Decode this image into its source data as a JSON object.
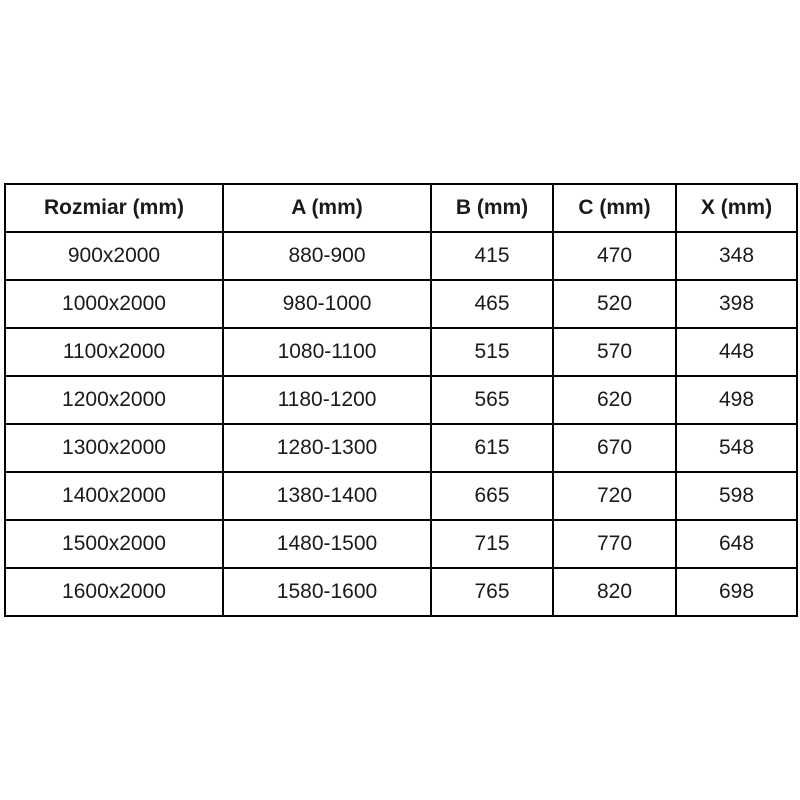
{
  "colors": {
    "background": "#ffffff",
    "border": "#000000",
    "text": "#1a1a1a"
  },
  "chart_data": {
    "type": "table",
    "columns": [
      "Rozmiar (mm)",
      "A (mm)",
      "B (mm)",
      "C (mm)",
      "X (mm)"
    ],
    "rows": [
      [
        "900x2000",
        "880-900",
        "415",
        "470",
        "348"
      ],
      [
        "1000x2000",
        "980-1000",
        "465",
        "520",
        "398"
      ],
      [
        "1100x2000",
        "1080-1100",
        "515",
        "570",
        "448"
      ],
      [
        "1200x2000",
        "1180-1200",
        "565",
        "620",
        "498"
      ],
      [
        "1300x2000",
        "1280-1300",
        "615",
        "670",
        "548"
      ],
      [
        "1400x2000",
        "1380-1400",
        "665",
        "720",
        "598"
      ],
      [
        "1500x2000",
        "1480-1500",
        "715",
        "770",
        "648"
      ],
      [
        "1600x2000",
        "1580-1600",
        "765",
        "820",
        "698"
      ]
    ]
  }
}
